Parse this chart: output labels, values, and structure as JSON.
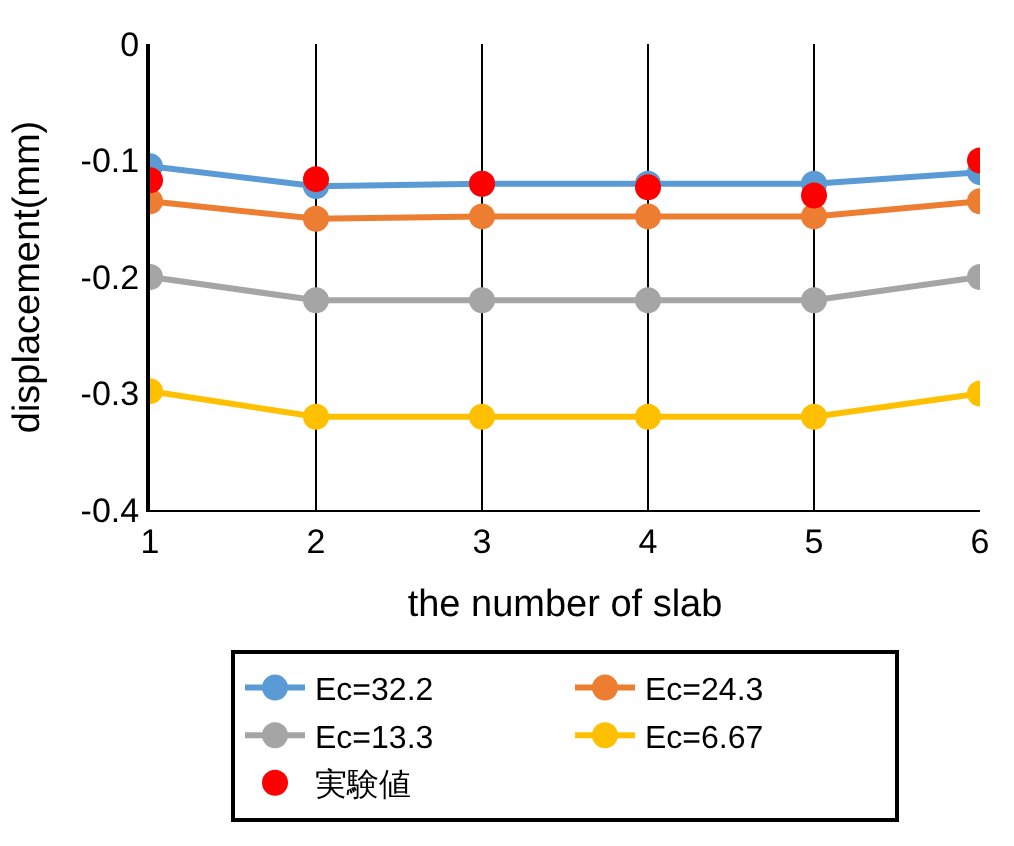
{
  "chart_data": {
    "type": "line",
    "xlabel": "the number of slab",
    "ylabel": "displacement(mm)",
    "x": [
      1,
      2,
      3,
      4,
      5,
      6
    ],
    "series": [
      {
        "name": "Ec=32.2",
        "color": "#5b9bd5",
        "values": [
          -0.105,
          -0.122,
          -0.12,
          -0.12,
          -0.12,
          -0.11
        ]
      },
      {
        "name": "Ec=24.3",
        "color": "#ed7d31",
        "values": [
          -0.135,
          -0.15,
          -0.148,
          -0.148,
          -0.148,
          -0.135
        ]
      },
      {
        "name": "Ec=13.3",
        "color": "#a5a5a5",
        "values": [
          -0.2,
          -0.22,
          -0.22,
          -0.22,
          -0.22,
          -0.2
        ]
      },
      {
        "name": "Ec=6.67",
        "color": "#ffc000",
        "values": [
          -0.298,
          -0.32,
          -0.32,
          -0.32,
          -0.32,
          -0.3
        ]
      },
      {
        "name": "実験値",
        "type": "scatter",
        "color": "#ff0000",
        "values": [
          -0.117,
          -0.116,
          -0.12,
          -0.123,
          -0.13,
          -0.1
        ]
      }
    ],
    "xlim": [
      1,
      6
    ],
    "xticks": [
      1,
      2,
      3,
      4,
      5,
      6
    ],
    "ylim": [
      -0.4,
      0
    ],
    "yticks": [
      -0.4,
      -0.3,
      -0.2,
      -0.1,
      0
    ],
    "grid": "x",
    "legend": "bottom",
    "marker": "circle",
    "line_style": "solid"
  }
}
